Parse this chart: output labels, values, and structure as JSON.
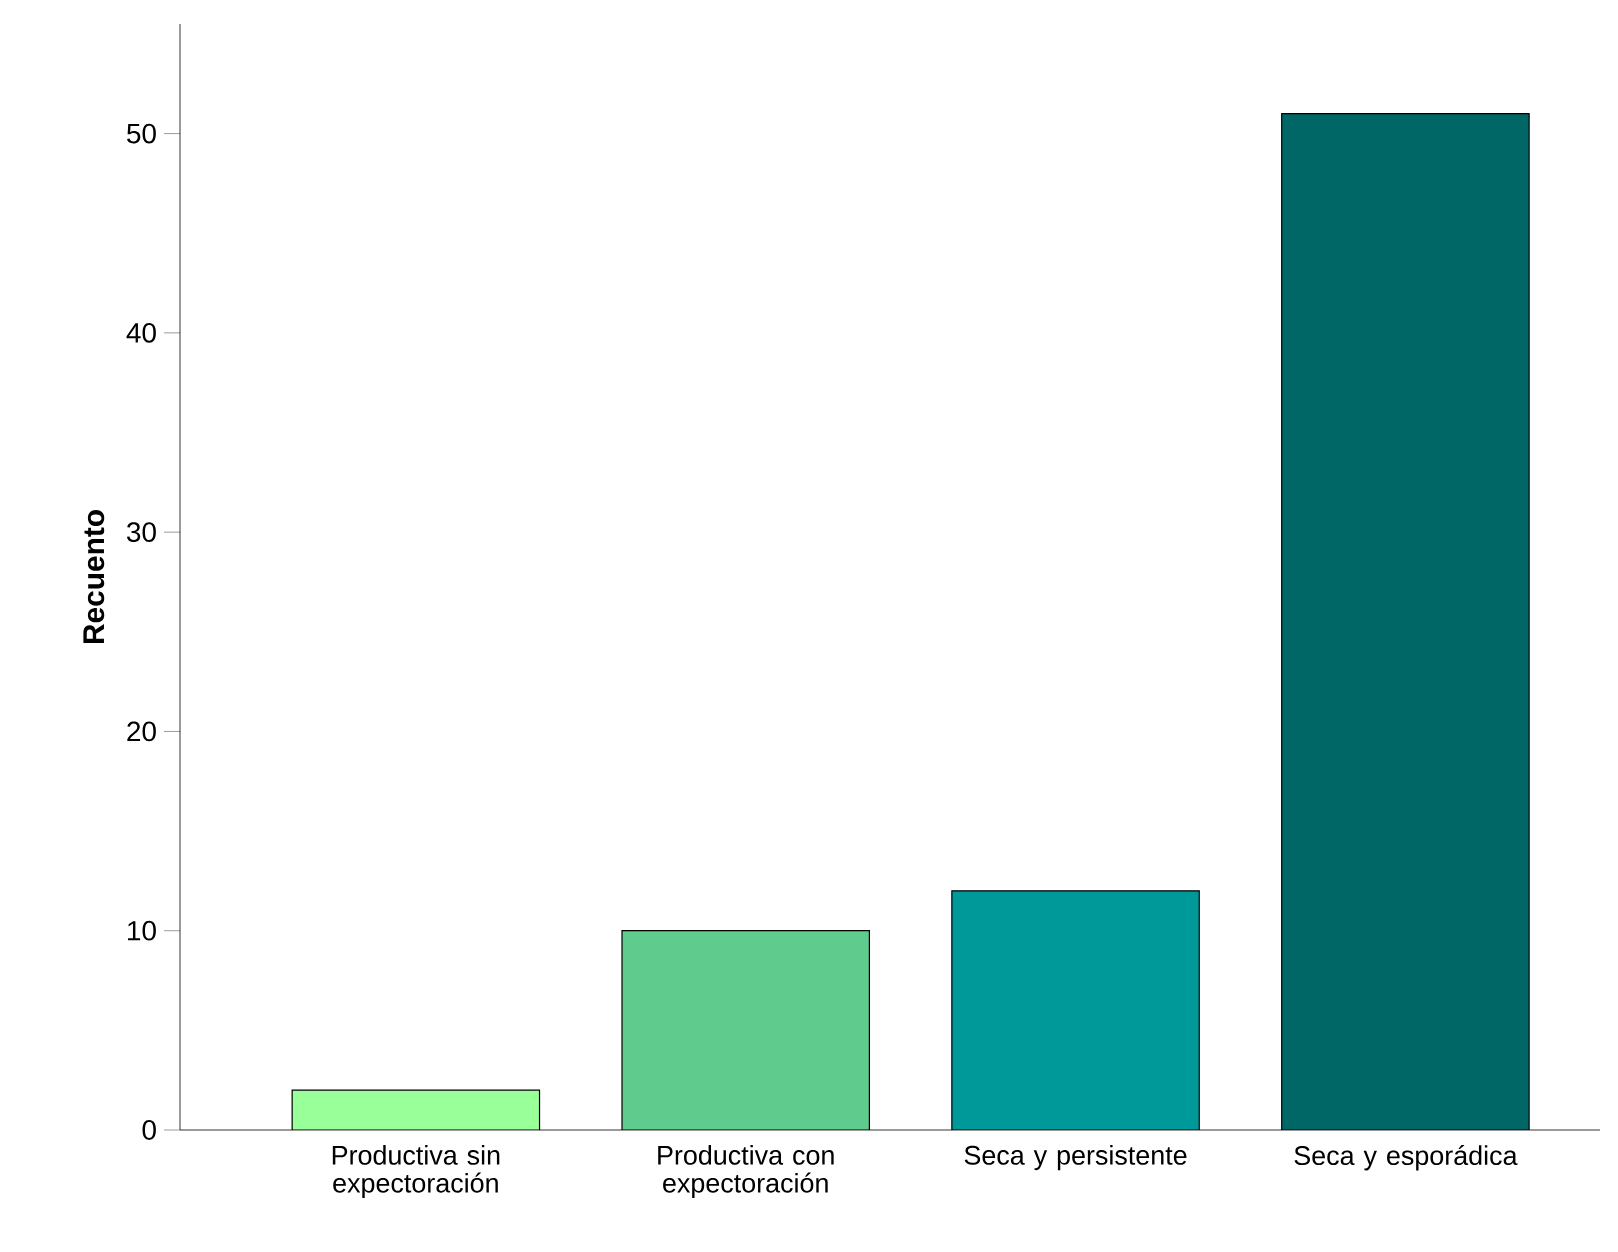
{
  "chart_data": {
    "type": "bar",
    "ylabel": "Recuento",
    "categories": [
      "Productiva sin expectoración",
      "Productiva con expectoración",
      "Seca y persistente",
      "Seca y esporádica"
    ],
    "values": [
      2,
      10,
      12,
      51
    ],
    "colors": [
      "#99ff99",
      "#5fcb8c",
      "#009999",
      "#006666"
    ],
    "ylim": [
      0,
      55.5
    ],
    "yticks": [
      0,
      10,
      20,
      30,
      40,
      50
    ],
    "grid": false
  }
}
